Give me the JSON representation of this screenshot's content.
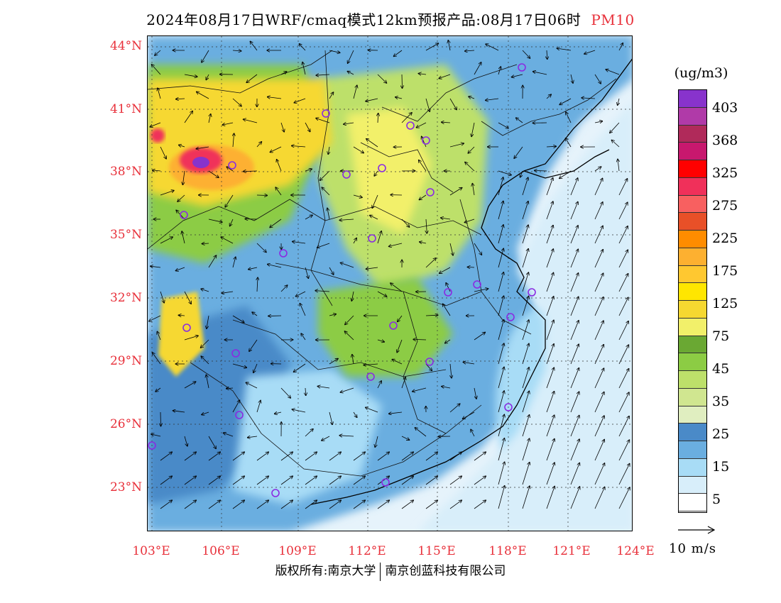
{
  "title": {
    "main": "2024年08月17日WRF/cmaq模式12km预报产品:08月17日06时",
    "pollutant": "PM10",
    "pollutant_color": "#e8303a"
  },
  "map": {
    "lat_labels": [
      "44°N",
      "41°N",
      "38°N",
      "35°N",
      "32°N",
      "29°N",
      "26°N",
      "23°N"
    ],
    "lon_labels": [
      "103°E",
      "106°E",
      "109°E",
      "112°E",
      "115°E",
      "118°E",
      "121°E",
      "124°E"
    ],
    "label_color": "#e8303a",
    "ocean_color": "#e6f3fb",
    "city_marker_color": "#8a2be2"
  },
  "colorbar": {
    "unit": "(ug/m3)",
    "colors": [
      "#8833cc",
      "#b03aa8",
      "#b02a5a",
      "#c8186e",
      "#ff0000",
      "#f0305a",
      "#f86060",
      "#e85028",
      "#ff8c00",
      "#fdb030",
      "#ffc830",
      "#ffe600",
      "#f6d830",
      "#f2f06a",
      "#6aa833",
      "#8ccc44",
      "#bde06a",
      "#d0e690",
      "#e0eec0",
      "#4a8ac8",
      "#6aaee0",
      "#a8dcf6",
      "#d8eefa",
      "#ffffff"
    ],
    "labels": [
      "403",
      "368",
      "325",
      "275",
      "225",
      "175",
      "125",
      "75",
      "45",
      "35",
      "25",
      "15",
      "5"
    ]
  },
  "wind_reference": {
    "label": "10 m/s"
  },
  "footer": {
    "left": "版权所有:南京大学",
    "right": "南京创蓝科技有限公司"
  }
}
